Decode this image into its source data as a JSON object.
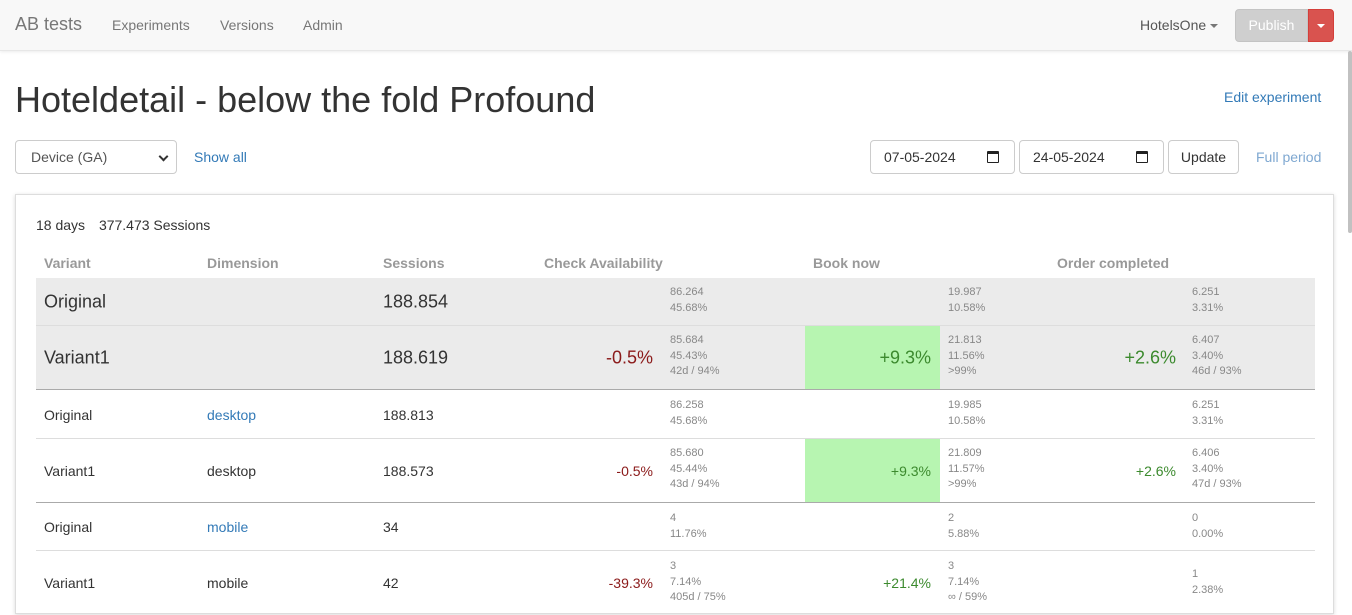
{
  "navbar": {
    "brand": "AB tests",
    "links": [
      "Experiments",
      "Versions",
      "Admin"
    ],
    "account": "HotelsOne",
    "publish_label": "Publish"
  },
  "page": {
    "title": "Hoteldetail - below the fold Profound",
    "edit_label": "Edit experiment",
    "dimension_select": "Device (GA)",
    "show_all": "Show all",
    "date_from": "07-05-2024",
    "date_to": "24-05-2024",
    "update_label": "Update",
    "full_period": "Full period"
  },
  "summary": {
    "days": "18 days",
    "sessions": "377.473 Sessions"
  },
  "table": {
    "headers": [
      "Variant",
      "Dimension",
      "Sessions",
      "Check Availability",
      "Book now",
      "Order completed"
    ],
    "rows": [
      {
        "variant": "Original",
        "dimension": "",
        "sessions": "188.854",
        "ca": {
          "delta": "",
          "stats": [
            "86.264",
            "45.68%"
          ]
        },
        "bn": {
          "delta": "",
          "stats": [
            "19.987",
            "10.58%"
          ]
        },
        "oc": {
          "delta": "",
          "stats": [
            "6.251",
            "3.31%"
          ]
        }
      },
      {
        "variant": "Variant1",
        "dimension": "",
        "sessions": "188.619",
        "ca": {
          "delta": "-0.5%",
          "stats": [
            "85.684",
            "45.43%",
            "42d / 94%"
          ]
        },
        "bn": {
          "delta": "+9.3%",
          "stats": [
            "21.813",
            "11.56%",
            ">99%"
          ]
        },
        "oc": {
          "delta": "+2.6%",
          "stats": [
            "6.407",
            "3.40%",
            "46d / 93%"
          ]
        }
      },
      {
        "variant": "Original",
        "dimension": "desktop",
        "sessions": "188.813",
        "ca": {
          "delta": "",
          "stats": [
            "86.258",
            "45.68%"
          ]
        },
        "bn": {
          "delta": "",
          "stats": [
            "19.985",
            "10.58%"
          ]
        },
        "oc": {
          "delta": "",
          "stats": [
            "6.251",
            "3.31%"
          ]
        }
      },
      {
        "variant": "Variant1",
        "dimension": "desktop",
        "sessions": "188.573",
        "ca": {
          "delta": "-0.5%",
          "stats": [
            "85.680",
            "45.44%",
            "43d / 94%"
          ]
        },
        "bn": {
          "delta": "+9.3%",
          "stats": [
            "21.809",
            "11.57%",
            ">99%"
          ]
        },
        "oc": {
          "delta": "+2.6%",
          "stats": [
            "6.406",
            "3.40%",
            "47d / 93%"
          ]
        }
      },
      {
        "variant": "Original",
        "dimension": "mobile",
        "sessions": "34",
        "ca": {
          "delta": "",
          "stats": [
            "4",
            "11.76%"
          ]
        },
        "bn": {
          "delta": "",
          "stats": [
            "2",
            "5.88%"
          ]
        },
        "oc": {
          "delta": "",
          "stats": [
            "0",
            "0.00%"
          ]
        }
      },
      {
        "variant": "Variant1",
        "dimension": "mobile",
        "sessions": "42",
        "ca": {
          "delta": "-39.3%",
          "stats": [
            "3",
            "7.14%",
            "405d / 75%"
          ]
        },
        "bn": {
          "delta": "+21.4%",
          "stats": [
            "3",
            "7.14%",
            "∞ / 59%"
          ]
        },
        "oc": {
          "delta": "",
          "stats": [
            "1",
            "2.38%"
          ]
        }
      }
    ]
  },
  "colors": {
    "highlight": "#b7f5b1",
    "negative": "#8b1a1a",
    "positive": "#3c8a2e",
    "link": "#337ab7"
  }
}
